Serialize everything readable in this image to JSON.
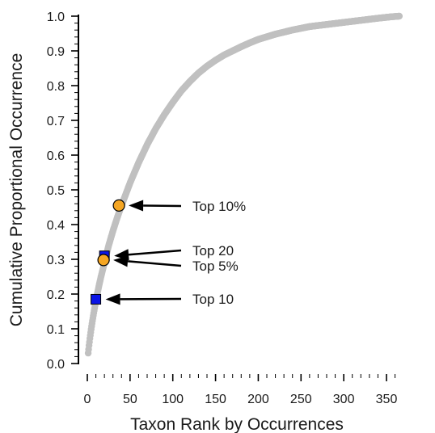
{
  "chart_data": {
    "type": "scatter",
    "xlabel": "Taxon Rank by Occurrences",
    "ylabel": "Cumulative Proportional Occurrence",
    "xlim": [
      0,
      370
    ],
    "ylim": [
      0,
      1.0
    ],
    "x_ticks": [
      0,
      50,
      100,
      150,
      200,
      250,
      300,
      350
    ],
    "y_ticks": [
      0.0,
      0.1,
      0.2,
      0.3,
      0.4,
      0.5,
      0.6,
      0.7,
      0.8,
      0.9,
      1.0
    ],
    "y_tick_labels": [
      "0.0",
      "0.1",
      "0.2",
      "0.3",
      "0.4",
      "0.5",
      "0.6",
      "0.7",
      "0.8",
      "0.9",
      "1.0"
    ],
    "grid": false,
    "curve_color": "#c0c0c0",
    "curve": {
      "x": [
        1,
        2,
        3,
        4,
        5,
        6,
        7,
        8,
        9,
        10,
        12,
        14,
        16,
        18,
        20,
        25,
        30,
        35,
        40,
        50,
        60,
        70,
        80,
        90,
        100,
        110,
        120,
        130,
        140,
        150,
        160,
        170,
        180,
        190,
        200,
        220,
        240,
        260,
        280,
        300,
        320,
        340,
        355,
        365
      ],
      "y": [
        0.03,
        0.052,
        0.072,
        0.09,
        0.107,
        0.123,
        0.138,
        0.152,
        0.166,
        0.18,
        0.205,
        0.228,
        0.25,
        0.27,
        0.29,
        0.34,
        0.382,
        0.42,
        0.455,
        0.52,
        0.578,
        0.63,
        0.676,
        0.716,
        0.752,
        0.785,
        0.812,
        0.836,
        0.856,
        0.873,
        0.888,
        0.9,
        0.912,
        0.923,
        0.933,
        0.948,
        0.96,
        0.97,
        0.976,
        0.982,
        0.988,
        0.994,
        0.998,
        1.0
      ]
    },
    "markers": [
      {
        "label": "Top 10%",
        "shape": "circle",
        "color": "#f5a623",
        "x": 37,
        "y": 0.455
      },
      {
        "label": "Top 20",
        "shape": "square",
        "color": "#0a14e6",
        "x": 20,
        "y": 0.31
      },
      {
        "label": "Top 5%",
        "shape": "circle",
        "color": "#f5a623",
        "x": 19,
        "y": 0.298
      },
      {
        "label": "Top 10",
        "shape": "square",
        "color": "#0a14e6",
        "x": 10,
        "y": 0.185
      }
    ]
  }
}
